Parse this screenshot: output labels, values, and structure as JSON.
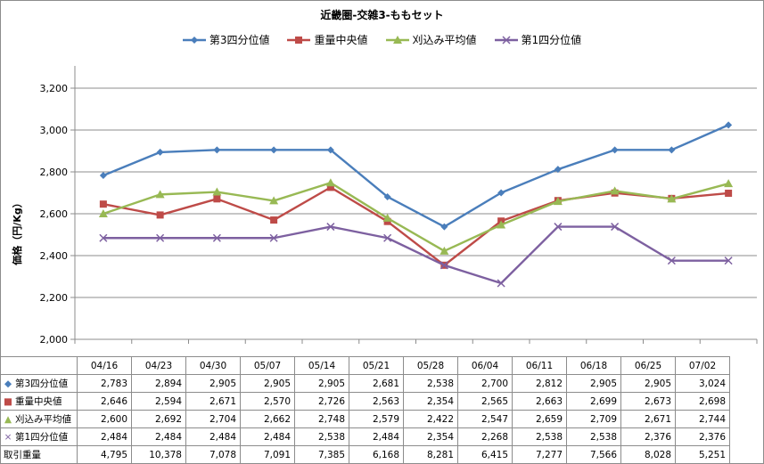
{
  "chart_data": {
    "type": "line",
    "title": "近畿圏-交雑3-ももセット",
    "ylabel": "価格（円/Kg）",
    "ylim": [
      2000,
      3200
    ],
    "yticks": [
      "2,000",
      "2,200",
      "2,400",
      "2,600",
      "2,800",
      "3,000",
      "3,200"
    ],
    "categories": [
      "04/16",
      "04/23",
      "04/30",
      "05/07",
      "05/14",
      "05/21",
      "05/28",
      "06/04",
      "06/11",
      "06/18",
      "06/25",
      "07/02"
    ],
    "series": [
      {
        "name": "第3四分位値",
        "color": "#4a7ebb",
        "marker": "diamond",
        "marker_char": "◆",
        "values": [
          2783,
          2894,
          2905,
          2905,
          2905,
          2681,
          2538,
          2700,
          2812,
          2905,
          2905,
          3024
        ],
        "labels": [
          "2,783",
          "2,894",
          "2,905",
          "2,905",
          "2,905",
          "2,681",
          "2,538",
          "2,700",
          "2,812",
          "2,905",
          "2,905",
          "3,024"
        ]
      },
      {
        "name": "重量中央値",
        "color": "#be4b48",
        "marker": "square",
        "marker_char": "■",
        "values": [
          2646,
          2594,
          2671,
          2570,
          2726,
          2563,
          2354,
          2565,
          2663,
          2699,
          2673,
          2698
        ],
        "labels": [
          "2,646",
          "2,594",
          "2,671",
          "2,570",
          "2,726",
          "2,563",
          "2,354",
          "2,565",
          "2,663",
          "2,699",
          "2,673",
          "2,698"
        ]
      },
      {
        "name": "刈込み平均値",
        "color": "#98b954",
        "marker": "triangle",
        "marker_char": "▲",
        "values": [
          2600,
          2692,
          2704,
          2662,
          2748,
          2579,
          2422,
          2547,
          2659,
          2709,
          2671,
          2744
        ],
        "labels": [
          "2,600",
          "2,692",
          "2,704",
          "2,662",
          "2,748",
          "2,579",
          "2,422",
          "2,547",
          "2,659",
          "2,709",
          "2,671",
          "2,744"
        ]
      },
      {
        "name": "第1四分位値",
        "color": "#7d60a0",
        "marker": "x",
        "marker_char": "×",
        "values": [
          2484,
          2484,
          2484,
          2484,
          2538,
          2484,
          2354,
          2268,
          2538,
          2538,
          2376,
          2376
        ],
        "labels": [
          "2,484",
          "2,484",
          "2,484",
          "2,484",
          "2,538",
          "2,484",
          "2,354",
          "2,268",
          "2,538",
          "2,538",
          "2,376",
          "2,376"
        ]
      }
    ],
    "extra_row": {
      "name": "取引重量",
      "labels": [
        "4,795",
        "10,378",
        "7,078",
        "7,091",
        "7,385",
        "6,168",
        "8,281",
        "6,415",
        "7,277",
        "7,566",
        "8,028",
        "5,251"
      ]
    },
    "grid": true,
    "legend": "top"
  }
}
